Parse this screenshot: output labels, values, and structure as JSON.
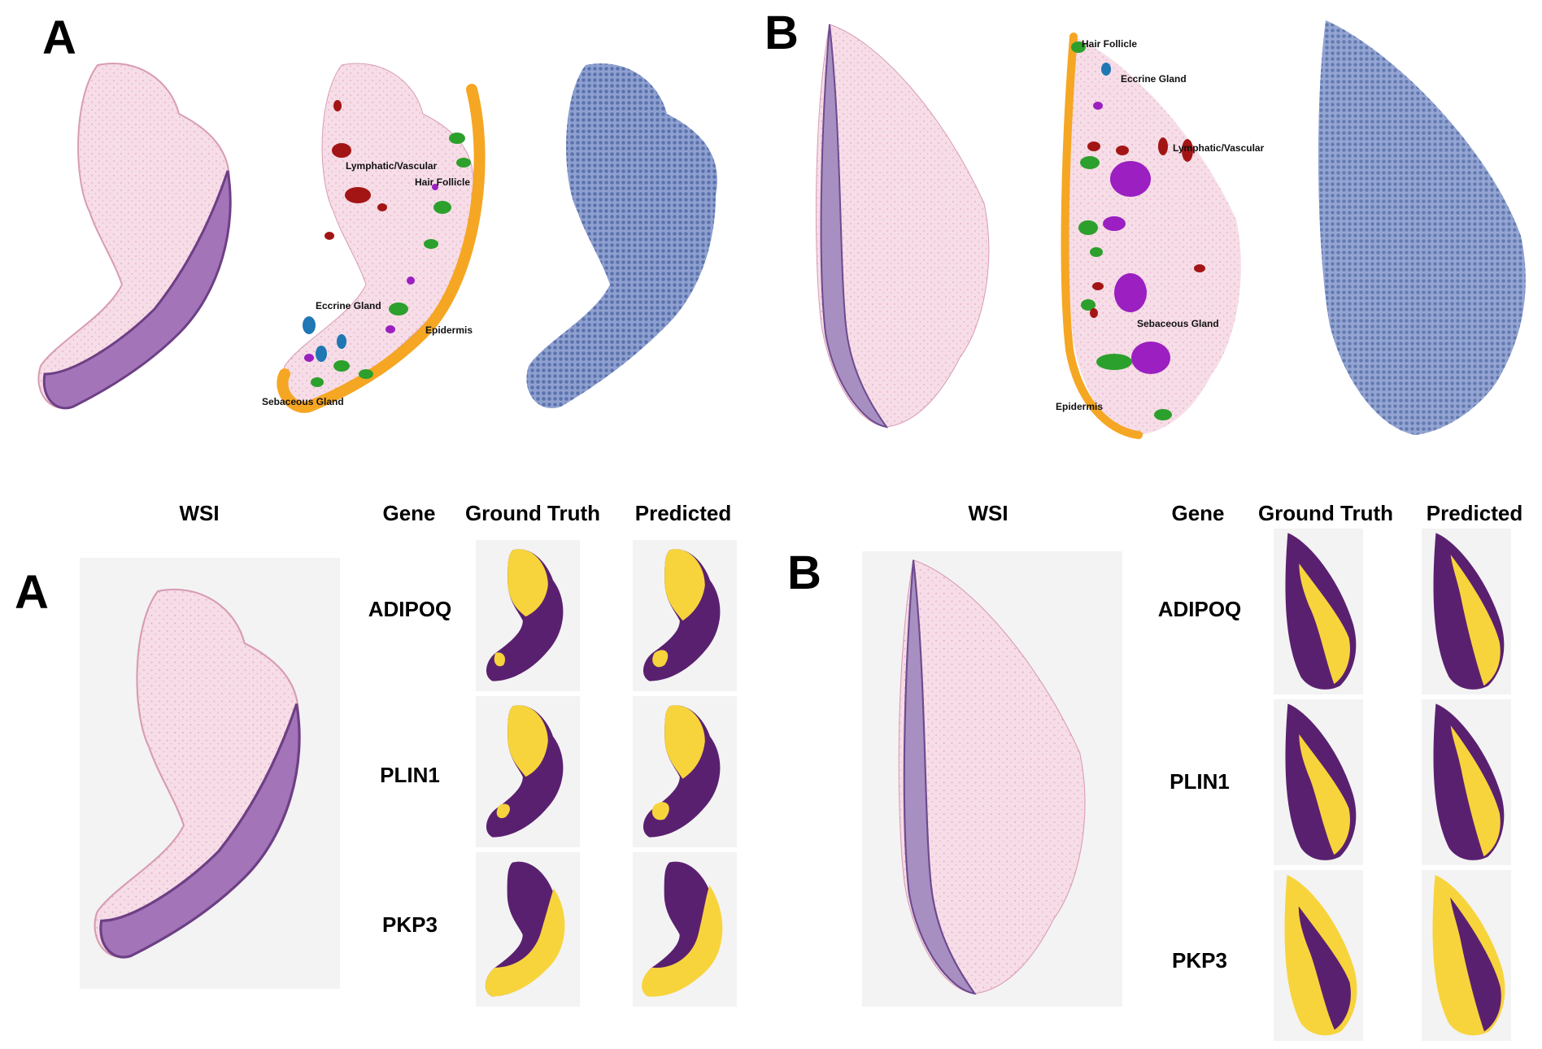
{
  "top": {
    "panel_a_letter": "A",
    "panel_b_letter": "B",
    "regions_a": {
      "lymphatic": "Lymphatic/Vascular",
      "hair": "Hair Follicle",
      "eccrine": "Eccrine Gland",
      "epidermis": "Epidermis",
      "sebaceous": "Sebaceous Gland"
    },
    "regions_b": {
      "hair": "Hair Follicle",
      "eccrine": "Eccrine Gland",
      "lymphatic": "Lymphatic/Vascular",
      "sebaceous": "Sebaceous Gland",
      "epidermis": "Epidermis"
    }
  },
  "bottom": {
    "panel_a_letter": "A",
    "panel_b_letter": "B",
    "headers": {
      "wsi": "WSI",
      "gene": "Gene",
      "ground_truth": "Ground Truth",
      "predicted": "Predicted"
    },
    "genes": [
      "ADIPOQ",
      "PLIN1",
      "PKP3"
    ]
  },
  "colors": {
    "epidermis": "#f5a623",
    "hair_follicle": "#2ca02c",
    "eccrine_gland": "#1f77b4",
    "lymphatic_vascular": "#a31515",
    "sebaceous_gland": "#9b1fc1",
    "high_expression": "#f7d43c",
    "low_expression": "#5a2070",
    "tissue_pink": "#f1c6d6",
    "tissue_purple": "#9b6fb0",
    "spot_blue": "#6f86c2"
  }
}
